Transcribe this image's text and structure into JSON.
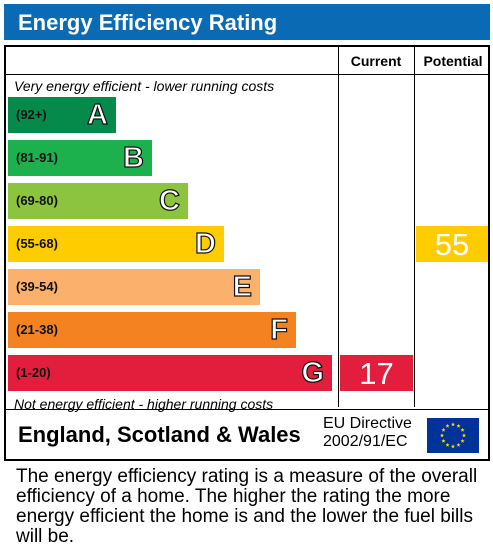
{
  "title": "Energy Efficiency Rating",
  "columns": {
    "current": "Current",
    "potential": "Potential"
  },
  "notes": {
    "top": "Very energy efficient - lower running costs",
    "bottom": "Not energy efficient - higher running costs"
  },
  "footer": {
    "country": "England, Scotland & Wales",
    "directive_line1": "EU Directive",
    "directive_line2": "2002/91/EC"
  },
  "description": "The energy efficiency rating is a measure of the overall efficiency of a home. The higher the rating the more energy efficient the home is and the lower the fuel bills will be.",
  "colors": {
    "title_bar": "#0a6bb4",
    "A": "#068a4c",
    "B": "#1cb14d",
    "C": "#8cc43f",
    "D": "#ffcc00",
    "E": "#fbb06b",
    "F": "#f58220",
    "G": "#e31d3c",
    "eu_flag": "#003399",
    "eu_stars": "#ffdd00"
  },
  "chart_data": {
    "type": "bar",
    "bands": [
      {
        "letter": "A",
        "range": "(92+)"
      },
      {
        "letter": "B",
        "range": "(81-91)"
      },
      {
        "letter": "C",
        "range": "(69-80)"
      },
      {
        "letter": "D",
        "range": "(55-68)"
      },
      {
        "letter": "E",
        "range": "(39-54)"
      },
      {
        "letter": "F",
        "range": "(21-38)"
      },
      {
        "letter": "G",
        "range": "(1-20)"
      }
    ],
    "current": {
      "value": "17",
      "band": "G"
    },
    "potential": {
      "value": "55",
      "band": "D"
    }
  }
}
